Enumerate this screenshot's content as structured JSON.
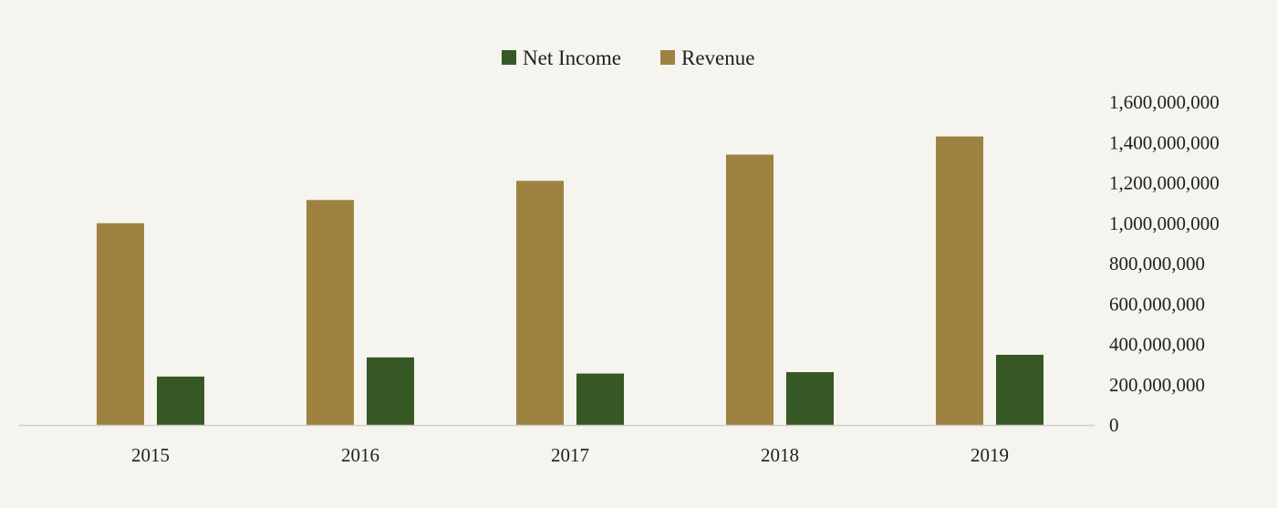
{
  "chart_data": {
    "type": "bar",
    "categories": [
      "2015",
      "2016",
      "2017",
      "2018",
      "2019"
    ],
    "series": [
      {
        "name": "Revenue",
        "color": "#9d8240",
        "values": [
          1000000000,
          1115000000,
          1210000000,
          1340000000,
          1430000000
        ]
      },
      {
        "name": "Net Income",
        "color": "#365824",
        "values": [
          240000000,
          335000000,
          255000000,
          262000000,
          348000000
        ]
      }
    ],
    "legend": {
      "position": "top",
      "order": [
        "Net Income",
        "Revenue"
      ]
    },
    "y_axis": {
      "position": "right",
      "min": 0,
      "max": 1600000000,
      "ticks": [
        0,
        200000000,
        400000000,
        600000000,
        800000000,
        1000000000,
        1200000000,
        1400000000,
        1600000000
      ],
      "tick_labels": [
        "0",
        "200,000,000",
        "400,000,000",
        "600,000,000",
        "800,000,000",
        "1,000,000,000",
        "1,200,000,000",
        "1,400,000,000",
        "1,600,000,000"
      ]
    },
    "grid": false,
    "baseline_color": "#cfcfc8"
  }
}
